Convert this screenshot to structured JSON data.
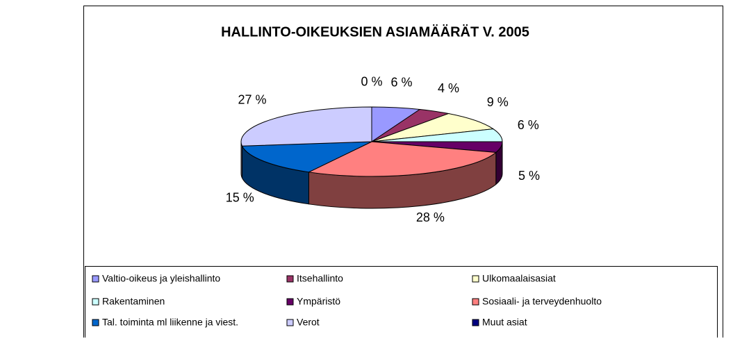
{
  "chart_data": {
    "type": "pie3d",
    "title": "HALLINTO-OIKEUKSIEN ASIAMÄÄRÄT V. 2005",
    "categories": [
      "Valtio-oikeus ja yleishallinto",
      "Itsehallinto",
      "Ulkomaalaisasiat",
      "Rakentaminen",
      "Ympäristö",
      "Sosiaali- ja terveydenhuolto",
      "Tal. toiminta ml liikenne ja viest.",
      "Verot",
      "Muut asiat"
    ],
    "values": [
      6,
      4,
      9,
      6,
      5,
      28,
      15,
      27,
      0
    ],
    "value_labels": [
      "6 %",
      "4 %",
      "9 %",
      "6 %",
      "5 %",
      "28 %",
      "15 %",
      "27 %",
      "0 %"
    ],
    "colors": [
      "#9999ff",
      "#993366",
      "#ffffcc",
      "#ccffff",
      "#660066",
      "#ff8080",
      "#0066cc",
      "#ccccff",
      "#000080"
    ],
    "legend": "bottom"
  }
}
